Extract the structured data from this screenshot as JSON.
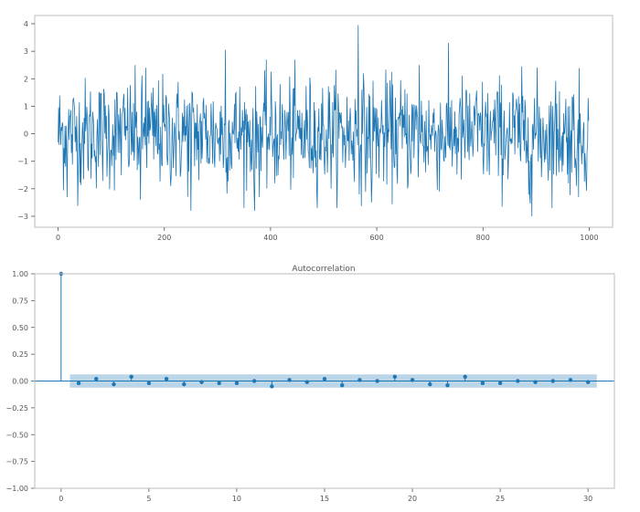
{
  "chart_data": [
    {
      "type": "line",
      "title": "",
      "xlabel": "",
      "ylabel": "",
      "xlim": [
        -44,
        1044
      ],
      "ylim": [
        -3.4,
        4.3
      ],
      "x_ticks": [
        "0",
        "200",
        "400",
        "600",
        "800",
        "1000"
      ],
      "y_ticks": [
        "−3",
        "−2",
        "−1",
        "0",
        "1",
        "2",
        "3",
        "4"
      ],
      "color": "#1f77b4",
      "n_points": 1000,
      "notable_points": [
        {
          "x": 17,
          "y": -2.3
        },
        {
          "x": 155,
          "y": -2.4
        },
        {
          "x": 165,
          "y": 2.4
        },
        {
          "x": 250,
          "y": -2.8
        },
        {
          "x": 315,
          "y": 3.05
        },
        {
          "x": 370,
          "y": -2.8
        },
        {
          "x": 565,
          "y": 3.95
        },
        {
          "x": 590,
          "y": -2.5
        },
        {
          "x": 680,
          "y": 2.5
        },
        {
          "x": 735,
          "y": 3.3
        },
        {
          "x": 892,
          "y": -3.0
        },
        {
          "x": 980,
          "y": -2.3
        }
      ]
    },
    {
      "type": "stem",
      "title": "Autocorrelation",
      "xlabel": "",
      "ylabel": "",
      "xlim": [
        -1.5,
        31.5
      ],
      "ylim": [
        -1.0,
        1.0
      ],
      "x_ticks": [
        "0",
        "5",
        "10",
        "15",
        "20",
        "25",
        "30"
      ],
      "y_ticks": [
        "−1.00",
        "−0.75",
        "−0.50",
        "−0.25",
        "0.00",
        "0.25",
        "0.50",
        "0.75",
        "1.00"
      ],
      "color": "#1f77b4",
      "confidence_band": 0.062,
      "lags": [
        0,
        1,
        2,
        3,
        4,
        5,
        6,
        7,
        8,
        9,
        10,
        11,
        12,
        13,
        14,
        15,
        16,
        17,
        18,
        19,
        20,
        21,
        22,
        23,
        24,
        25,
        26,
        27,
        28,
        29,
        30
      ],
      "values": [
        1.0,
        -0.02,
        0.02,
        -0.03,
        0.04,
        -0.02,
        0.02,
        -0.03,
        -0.01,
        -0.02,
        -0.02,
        0.0,
        -0.05,
        0.01,
        -0.01,
        0.02,
        -0.04,
        0.01,
        0.0,
        0.04,
        0.01,
        -0.03,
        -0.04,
        0.04,
        -0.02,
        -0.02,
        0.0,
        -0.01,
        0.0,
        0.01,
        -0.01
      ]
    }
  ]
}
